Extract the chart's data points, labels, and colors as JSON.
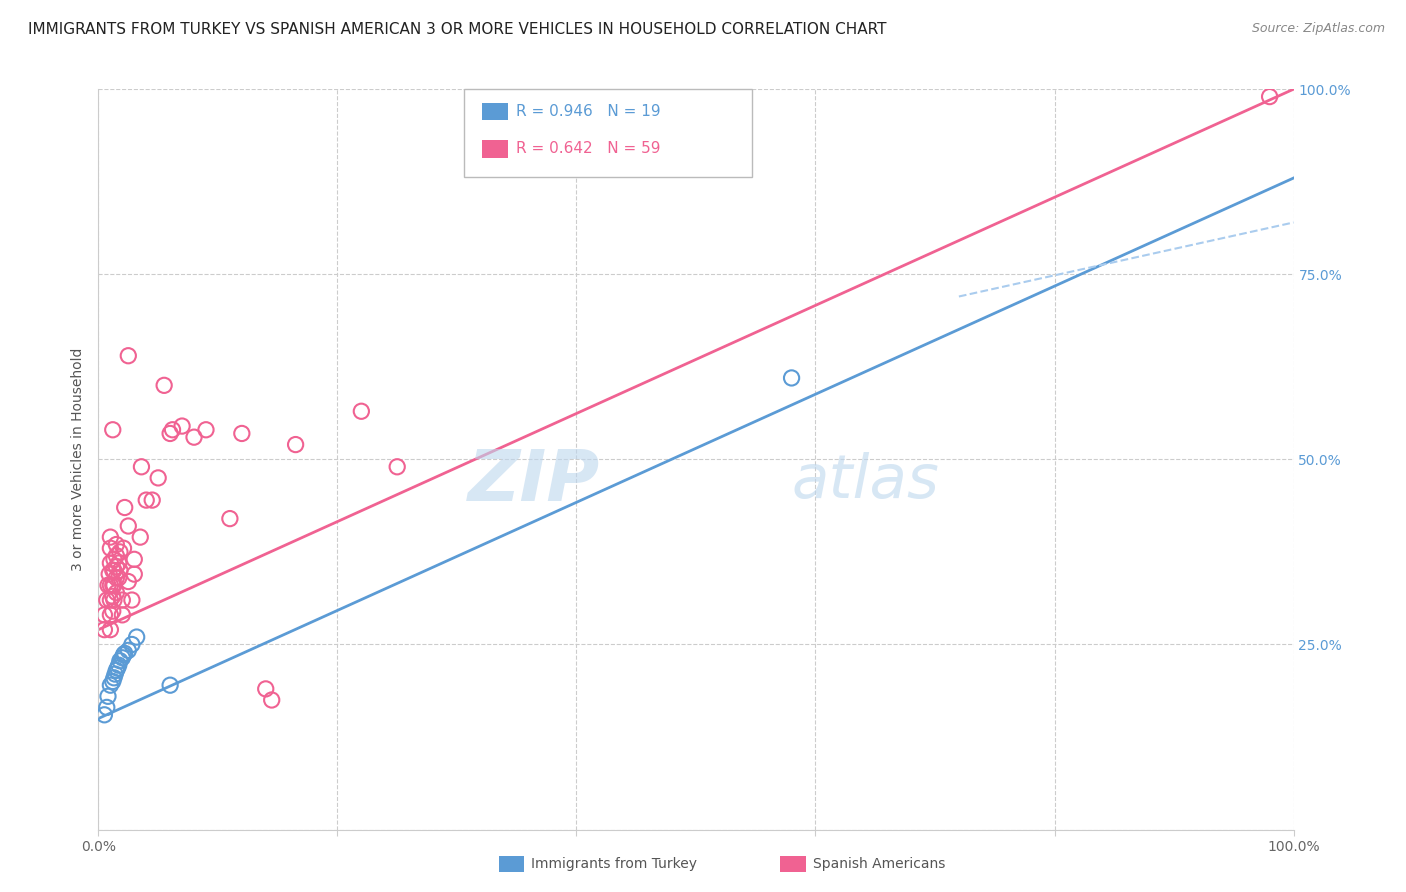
{
  "title": "IMMIGRANTS FROM TURKEY VS SPANISH AMERICAN 3 OR MORE VEHICLES IN HOUSEHOLD CORRELATION CHART",
  "source": "Source: ZipAtlas.com",
  "ylabel": "3 or more Vehicles in Household",
  "xlim": [
    0,
    1.0
  ],
  "ylim": [
    0,
    1.0
  ],
  "xtick_positions": [
    0.0,
    0.2,
    0.4,
    0.6,
    0.8,
    1.0
  ],
  "xtick_labels": [
    "0.0%",
    "",
    "",
    "",
    "",
    "100.0%"
  ],
  "ytick_positions": [
    0.0,
    0.25,
    0.5,
    0.75,
    1.0
  ],
  "ytick_labels": [
    "",
    "25.0%",
    "50.0%",
    "75.0%",
    "100.0%"
  ],
  "watermark_zip": "ZIP",
  "watermark_atlas": "atlas",
  "legend_blue_r": "R = 0.946",
  "legend_blue_n": "N = 19",
  "legend_pink_r": "R = 0.642",
  "legend_pink_n": "N = 59",
  "blue_color": "#5B9BD5",
  "pink_color": "#F06292",
  "blue_scatter": [
    [
      0.005,
      0.155
    ],
    [
      0.007,
      0.165
    ],
    [
      0.008,
      0.18
    ],
    [
      0.01,
      0.195
    ],
    [
      0.012,
      0.2
    ],
    [
      0.013,
      0.205
    ],
    [
      0.014,
      0.21
    ],
    [
      0.015,
      0.215
    ],
    [
      0.016,
      0.218
    ],
    [
      0.017,
      0.222
    ],
    [
      0.018,
      0.228
    ],
    [
      0.02,
      0.232
    ],
    [
      0.021,
      0.236
    ],
    [
      0.022,
      0.238
    ],
    [
      0.025,
      0.242
    ],
    [
      0.028,
      0.25
    ],
    [
      0.032,
      0.26
    ],
    [
      0.06,
      0.195
    ],
    [
      0.58,
      0.61
    ]
  ],
  "pink_scatter": [
    [
      0.005,
      0.27
    ],
    [
      0.005,
      0.29
    ],
    [
      0.007,
      0.31
    ],
    [
      0.008,
      0.33
    ],
    [
      0.009,
      0.345
    ],
    [
      0.01,
      0.27
    ],
    [
      0.01,
      0.29
    ],
    [
      0.01,
      0.31
    ],
    [
      0.01,
      0.33
    ],
    [
      0.01,
      0.36
    ],
    [
      0.01,
      0.38
    ],
    [
      0.01,
      0.395
    ],
    [
      0.012,
      0.295
    ],
    [
      0.012,
      0.315
    ],
    [
      0.012,
      0.33
    ],
    [
      0.012,
      0.35
    ],
    [
      0.013,
      0.31
    ],
    [
      0.013,
      0.33
    ],
    [
      0.013,
      0.35
    ],
    [
      0.013,
      0.365
    ],
    [
      0.015,
      0.32
    ],
    [
      0.015,
      0.34
    ],
    [
      0.015,
      0.355
    ],
    [
      0.015,
      0.37
    ],
    [
      0.015,
      0.385
    ],
    [
      0.017,
      0.34
    ],
    [
      0.017,
      0.36
    ],
    [
      0.018,
      0.35
    ],
    [
      0.018,
      0.375
    ],
    [
      0.02,
      0.29
    ],
    [
      0.02,
      0.31
    ],
    [
      0.021,
      0.38
    ],
    [
      0.022,
      0.435
    ],
    [
      0.025,
      0.335
    ],
    [
      0.025,
      0.41
    ],
    [
      0.028,
      0.31
    ],
    [
      0.03,
      0.345
    ],
    [
      0.03,
      0.365
    ],
    [
      0.035,
      0.395
    ],
    [
      0.036,
      0.49
    ],
    [
      0.04,
      0.445
    ],
    [
      0.045,
      0.445
    ],
    [
      0.05,
      0.475
    ],
    [
      0.06,
      0.535
    ],
    [
      0.062,
      0.54
    ],
    [
      0.07,
      0.545
    ],
    [
      0.08,
      0.53
    ],
    [
      0.09,
      0.54
    ],
    [
      0.12,
      0.535
    ],
    [
      0.012,
      0.54
    ],
    [
      0.055,
      0.6
    ],
    [
      0.11,
      0.42
    ],
    [
      0.14,
      0.19
    ],
    [
      0.145,
      0.175
    ],
    [
      0.165,
      0.52
    ],
    [
      0.22,
      0.565
    ],
    [
      0.25,
      0.49
    ],
    [
      0.98,
      0.99
    ],
    [
      0.025,
      0.64
    ]
  ],
  "blue_line": {
    "x0": 0.0,
    "y0": 0.15,
    "x1": 1.0,
    "y1": 0.88
  },
  "pink_line": {
    "x0": 0.0,
    "y0": 0.27,
    "x1": 1.0,
    "y1": 1.0
  },
  "dashed_line": {
    "x0": 0.72,
    "y0": 0.72,
    "x1": 1.0,
    "y1": 0.82
  },
  "grid_color": "#CCCCCC",
  "background_color": "#FFFFFF",
  "title_fontsize": 11,
  "axis_label_fontsize": 10,
  "tick_fontsize": 10,
  "legend_fontsize": 11,
  "right_tick_color": "#5B9BD5",
  "watermark_color_zip": "#BDD7EE",
  "watermark_color_atlas": "#BDD7EE"
}
